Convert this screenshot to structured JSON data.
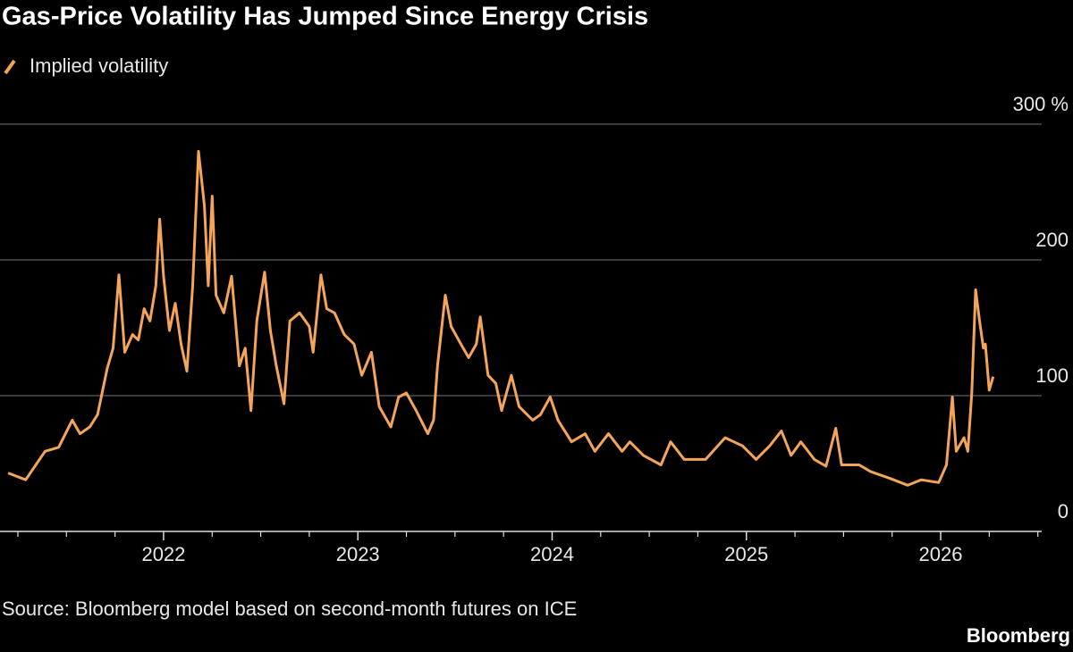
{
  "chart_data": {
    "type": "line",
    "title": "Gas-Price Volatility Has Jumped Since Energy Crisis",
    "source": "Source: Bloomberg model based on second-month futures on ICE",
    "brand": "Bloomberg",
    "x": [
      2021.2,
      2021.29,
      2021.39,
      2021.46,
      2021.53,
      2021.57,
      2021.62,
      2021.66,
      2021.71,
      2021.74,
      2021.77,
      2021.8,
      2021.84,
      2021.87,
      2021.9,
      2021.93,
      2021.96,
      2021.98,
      2022.0,
      2022.03,
      2022.06,
      2022.09,
      2022.12,
      2022.15,
      2022.18,
      2022.21,
      2022.23,
      2022.25,
      2022.27,
      2022.31,
      2022.35,
      2022.39,
      2022.42,
      2022.45,
      2022.48,
      2022.52,
      2022.55,
      2022.58,
      2022.62,
      2022.65,
      2022.7,
      2022.75,
      2022.77,
      2022.81,
      2022.84,
      2022.88,
      2022.93,
      2022.98,
      2023.02,
      2023.07,
      2023.11,
      2023.17,
      2023.21,
      2023.25,
      2023.3,
      2023.36,
      2023.39,
      2023.41,
      2023.45,
      2023.48,
      2023.53,
      2023.57,
      2023.61,
      2023.63,
      2023.67,
      2023.71,
      2023.74,
      2023.79,
      2023.83,
      2023.9,
      2023.94,
      2023.99,
      2024.03,
      2024.1,
      2024.17,
      2024.22,
      2024.29,
      2024.36,
      2024.4,
      2024.47,
      2024.56,
      2024.61,
      2024.68,
      2024.79,
      2024.89,
      2024.98,
      2025.05,
      2025.12,
      2025.18,
      2025.23,
      2025.28,
      2025.35,
      2025.41,
      2025.46,
      2025.49,
      2025.58,
      2025.64,
      2025.74,
      2025.83,
      2025.9,
      2025.99,
      2026.03,
      2026.06,
      2026.08,
      2026.12,
      2026.14,
      2026.16,
      2026.18,
      2026.2,
      2026.22,
      2026.23,
      2026.25,
      2026.27
    ],
    "series": [
      {
        "name": "Implied volatility",
        "color": "#f5a55a",
        "values": [
          43,
          38,
          59,
          62,
          82,
          72,
          77,
          86,
          120,
          135,
          189,
          132,
          145,
          141,
          164,
          155,
          181,
          230,
          188,
          148,
          168,
          138,
          118,
          181,
          280,
          240,
          181,
          247,
          174,
          161,
          188,
          122,
          135,
          89,
          155,
          191,
          148,
          122,
          94,
          155,
          161,
          151,
          132,
          189,
          164,
          161,
          145,
          138,
          115,
          132,
          92,
          77,
          99,
          102,
          89,
          72,
          82,
          122,
          174,
          151,
          138,
          128,
          138,
          158,
          115,
          109,
          89,
          115,
          92,
          82,
          86,
          99,
          82,
          66,
          72,
          59,
          72,
          59,
          66,
          56,
          49,
          66,
          53,
          53,
          69,
          63,
          53,
          63,
          74,
          56,
          66,
          53,
          48,
          76,
          49,
          49,
          44,
          39,
          34,
          38,
          36,
          49,
          99,
          59,
          69,
          59,
          102,
          178,
          155,
          135,
          138,
          104,
          114
        ]
      }
    ],
    "xlim": [
      2021.158,
      2026.52
    ],
    "xticks": [
      2022,
      2023,
      2024,
      2025,
      2026
    ],
    "x_minor_ticks": [
      2021.25,
      2021.5,
      2021.75,
      2022.25,
      2022.5,
      2022.75,
      2023.25,
      2023.5,
      2023.75,
      2024.25,
      2024.5,
      2024.75,
      2025.25,
      2025.5,
      2025.75,
      2026.25,
      2026.5
    ],
    "ylim": [
      0,
      300
    ],
    "yticks": [
      0,
      100,
      200,
      {
        "value": 300,
        "label": "300 %"
      }
    ],
    "grid": true
  }
}
